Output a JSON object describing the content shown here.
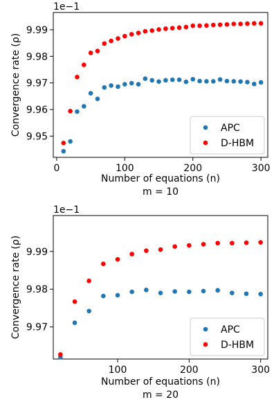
{
  "colors": {
    "apc": "#1f77b4",
    "dhbm": "#ff0000"
  },
  "chart_data": [
    {
      "type": "scatter",
      "xlabel": "Number of equations (n)",
      "ylabel": "Convergence rate (ρ)",
      "caption": "m = 10",
      "multiplier": "1e−1",
      "xlim": [
        -5,
        310
      ],
      "ylim": [
        9.942,
        9.9965
      ],
      "xticks": [
        0,
        100,
        200,
        300
      ],
      "yticks": [
        9.95,
        9.96,
        9.97,
        9.98,
        9.99
      ],
      "xtick_labels": [
        "0",
        "100",
        "200",
        "300"
      ],
      "ytick_labels": [
        "9.95",
        "9.96",
        "9.97",
        "9.98",
        "9.99"
      ],
      "grid": false,
      "legend_position": "bottom-right",
      "series": [
        {
          "name": "APC",
          "color": "#1f77b4",
          "x": [
            10,
            20,
            30,
            40,
            50,
            60,
            70,
            80,
            90,
            100,
            110,
            120,
            130,
            140,
            150,
            160,
            170,
            180,
            190,
            200,
            210,
            220,
            230,
            240,
            250,
            260,
            270,
            280,
            290,
            300
          ],
          "y": [
            9.9443,
            9.948,
            9.9592,
            9.9612,
            9.9661,
            9.964,
            9.9683,
            9.969,
            9.9686,
            9.9695,
            9.9699,
            9.9695,
            9.9716,
            9.971,
            9.9705,
            9.971,
            9.9712,
            9.9712,
            9.9704,
            9.9714,
            9.9707,
            9.9706,
            9.9706,
            9.9713,
            9.9707,
            9.9706,
            9.9705,
            9.9703,
            9.9696,
            9.9702
          ]
        },
        {
          "name": "D-HBM",
          "color": "#ff0000",
          "x": [
            10,
            20,
            30,
            40,
            50,
            60,
            70,
            80,
            90,
            100,
            110,
            120,
            130,
            140,
            150,
            160,
            170,
            180,
            190,
            200,
            210,
            220,
            230,
            240,
            250,
            260,
            270,
            280,
            290,
            300
          ],
          "y": [
            9.9474,
            9.9594,
            9.9722,
            9.9768,
            9.9813,
            9.982,
            9.9848,
            9.9858,
            9.9867,
            9.9876,
            9.9883,
            9.9888,
            9.9894,
            9.9897,
            9.9901,
            9.9904,
            9.9906,
            9.9908,
            9.991,
            9.9915,
            9.9915,
            9.9916,
            9.9918,
            9.9919,
            9.992,
            9.9922,
            9.9922,
            9.9923,
            9.9924,
            9.9924
          ]
        }
      ]
    },
    {
      "type": "scatter",
      "xlabel": "Number of equations (n)",
      "ylabel": "Convergence rate (ρ)",
      "caption": "m = 20",
      "multiplier": "1e−1",
      "xlim": [
        10,
        310
      ],
      "ylim": [
        9.9615,
        9.9995
      ],
      "xticks": [
        100,
        200,
        300
      ],
      "yticks": [
        9.97,
        9.98,
        9.99
      ],
      "xtick_labels": [
        "100",
        "200",
        "300"
      ],
      "ytick_labels": [
        "9.97",
        "9.98",
        "9.99"
      ],
      "grid": false,
      "legend_position": "bottom-right",
      "series": [
        {
          "name": "APC",
          "color": "#1f77b4",
          "x": [
            20,
            40,
            60,
            80,
            100,
            120,
            140,
            160,
            180,
            200,
            220,
            240,
            260,
            280,
            300
          ],
          "y": [
            9.962,
            9.9711,
            9.9742,
            9.9782,
            9.9784,
            9.9793,
            9.9798,
            9.979,
            9.9794,
            9.9793,
            9.9795,
            9.9797,
            9.979,
            9.9788,
            9.9787
          ]
        },
        {
          "name": "D-HBM",
          "color": "#ff0000",
          "x": [
            20,
            40,
            60,
            80,
            100,
            120,
            140,
            160,
            180,
            200,
            220,
            240,
            260,
            280,
            300
          ],
          "y": [
            9.9627,
            9.9767,
            9.9822,
            9.9867,
            9.9879,
            9.9893,
            9.9902,
            9.9905,
            9.9913,
            9.9916,
            9.9919,
            9.9922,
            9.9922,
            9.9923,
            9.9924
          ]
        }
      ]
    }
  ]
}
